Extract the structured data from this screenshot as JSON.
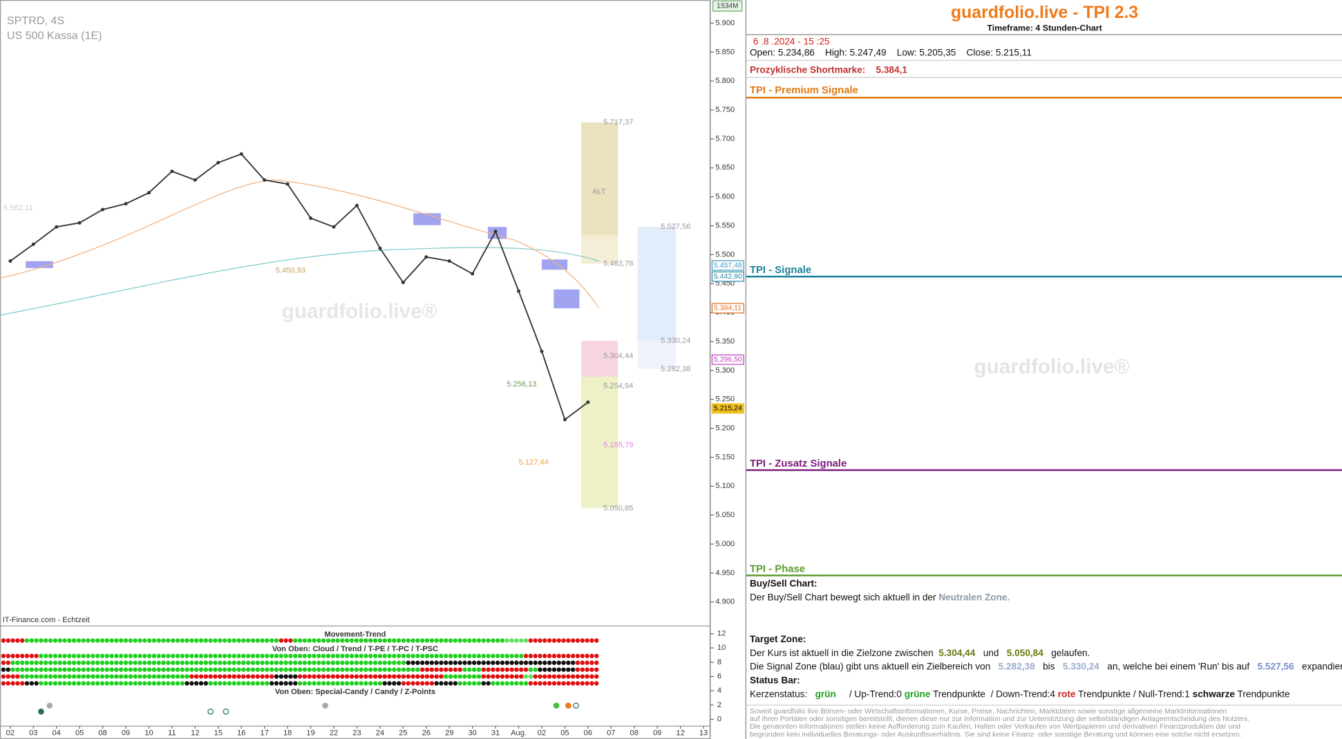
{
  "chart_data": {
    "type": "line",
    "title": "SPTRD, 4S",
    "subtitle": "US 500 Kassa (1E)",
    "source": "IT-Finance.com - Echtzeit",
    "timeframe_badge": "1S34M",
    "watermark": "guardfolio.live®",
    "categories": [
      "02",
      "03",
      "04",
      "05",
      "08",
      "09",
      "10",
      "11",
      "12",
      "15",
      "16",
      "17",
      "18",
      "19",
      "22",
      "23",
      "24",
      "25",
      "26",
      "29",
      "30",
      "31",
      "Aug.",
      "02",
      "05",
      "06",
      "07",
      "08",
      "09",
      "12",
      "13"
    ],
    "values": [
      5.489,
      5.518,
      5.548,
      5.555,
      5.578,
      5.588,
      5.607,
      5.644,
      5.629,
      5.659,
      5.674,
      5.629,
      5.622,
      5.563,
      5.548,
      5.585,
      5.511,
      5.452,
      5.496,
      5.489,
      5.467,
      5.54,
      5.437,
      5.333,
      5.215,
      5.245,
      null,
      null,
      null,
      null,
      null
    ],
    "color": "#333333",
    "ylim": [
      4.86,
      5.94
    ],
    "yticks": [
      {
        "value": 4.9,
        "label": "4.900"
      },
      {
        "value": 4.95,
        "label": "4.950"
      },
      {
        "value": 5.0,
        "label": "5.000"
      },
      {
        "value": 5.05,
        "label": "5.050"
      },
      {
        "value": 5.1,
        "label": "5.100"
      },
      {
        "value": 5.15,
        "label": "5.150"
      },
      {
        "value": 5.2,
        "label": "5.200"
      },
      {
        "value": 5.25,
        "label": "5.250"
      },
      {
        "value": 5.3,
        "label": "5.300"
      },
      {
        "value": 5.35,
        "label": "5.350"
      },
      {
        "value": 5.4,
        "label": "5.400"
      },
      {
        "value": 5.45,
        "label": "5.450"
      },
      {
        "value": 5.5,
        "label": "5.500"
      },
      {
        "value": 5.55,
        "label": "5.550"
      },
      {
        "value": 5.6,
        "label": "5.600"
      },
      {
        "value": 5.65,
        "label": "5.650"
      },
      {
        "value": 5.7,
        "label": "5.700"
      },
      {
        "value": 5.75,
        "label": "5.750"
      },
      {
        "value": 5.8,
        "label": "5.800"
      },
      {
        "value": 5.85,
        "label": "5.850"
      },
      {
        "value": 5.9,
        "label": "5.900"
      }
    ],
    "price_labels": [
      {
        "label": "5.457,48",
        "color": "#3a9ac0"
      },
      {
        "label": "5.442,90",
        "color": "#2a8aa8"
      },
      {
        "label": "5.384,11",
        "color": "#e07020"
      },
      {
        "label": "5.296,50",
        "color": "#c040c0"
      },
      {
        "label": "5.215,24",
        "color": "#f0c020"
      }
    ],
    "annotations": [
      "5.717,37",
      "ALT",
      "5.527,56",
      "5.463,78",
      "5.450,93",
      "5.562,11",
      "5.330,24",
      "5.304,44",
      "5.282,38",
      "5.256,13",
      "5.254,94",
      "5.155,79",
      "5.127,44",
      "5.050,85"
    ],
    "indicator": {
      "titles": [
        "Movement-Trend",
        "Von Oben: Cloud / Trend / T-PE / T-PC / T-PSC",
        "Von Oben: Special-Candy / Candy / Z-Points"
      ],
      "ylim": [
        0,
        12
      ],
      "yticks": [
        12,
        10,
        8,
        6,
        4,
        2,
        0
      ]
    }
  },
  "panel": {
    "title": "guardfolio.live - TPI 2.3",
    "timeframe": "Timeframe: 4 Stunden-Chart",
    "datetime": "6 .8 .2024 - 15 :25",
    "ohlc": "Open: 5.234,86    High: 5.247,49    Low: 5.205,35    Close: 5.215,11",
    "shortmark_label": "Prozyklische Shortmarke:",
    "shortmark_value": "5.384,1",
    "sections": [
      "TPI - Premium Signale",
      "TPI - Signale",
      "TPI - Zusatz Signale",
      "TPI - Phase"
    ],
    "buysell": {
      "heading": "Buy/Sell Chart:",
      "text": "Der Buy/Sell Chart bewegt sich aktuell in der",
      "zone": "Neutralen Zone."
    },
    "target": {
      "heading": "Target Zone:",
      "line1": [
        "Der Kurs ist aktuell in die Zielzone zwischen",
        "5.304,44",
        "und",
        "5.050,84",
        "gelaufen."
      ],
      "line2": [
        "Die Signal Zone (blau) gibt uns aktuell ein Zielbereich von",
        "5.282,38",
        "bis",
        "5.330,24",
        "an, welche bei einem 'Run' bis auf",
        "5.527,56",
        "expandieren kann."
      ]
    },
    "status": {
      "heading": "Status Bar:",
      "line": [
        "Kerzenstatus:",
        "grün",
        "/ Up-Trend:0",
        "grüne",
        "Trendpunkte",
        "/ Down-Trend:4",
        "rote",
        "Trendpunkte",
        "/ Null-Trend:1",
        "schwarze",
        "Trendpunkte"
      ]
    },
    "disclaimer": [
      "Soweit guardfolio live Börsen- oder Wirtschaftsinformationen, Kurse, Preise, Nachrichten, Marktdaten sowie sonstige allgemeine Marktinformationen",
      "auf ihren Portalen oder sonstigen bereitstellt, dienen diese nur zur Information und zur Unterstützung der selbstständigen Anlageentscheidung des Nutzers.",
      "Die genannten Informationen stellen keine Aufforderung zum Kaufen, Halten oder Verkaufen von Wertpapieren und derivativen Finanzprodukten dar und",
      "begründen kein individuelles Beratungs- oder Auskunftsverhältnis. Sie sind keine Finanz- oder sonstige Beratung und können eine solche nicht ersetzen."
    ],
    "watermark": "guardfolio.live®"
  }
}
